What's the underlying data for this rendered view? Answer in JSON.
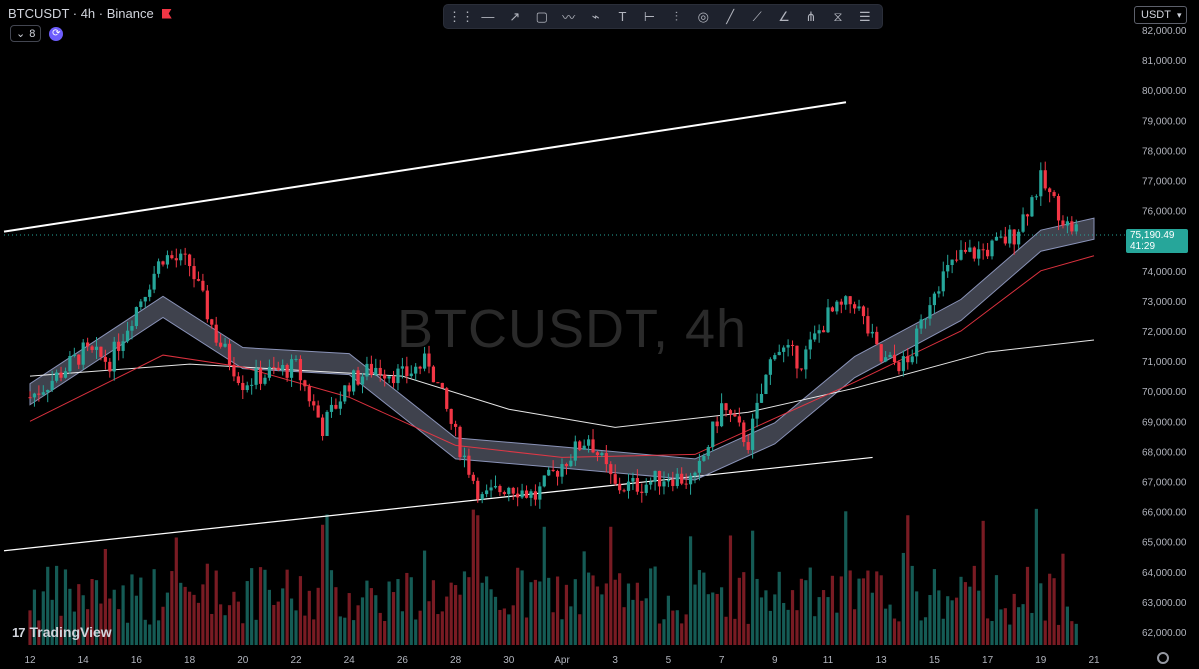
{
  "header": {
    "title": "BTCUSDT · 4h · Binance",
    "indicator_count": "8"
  },
  "watermark": "BTCUSDT, 4h",
  "currency": "USDT",
  "last_price": {
    "value": "75,190.49",
    "countdown": "41:29"
  },
  "brand": "TradingView",
  "toolbar_tools": [
    "drag-handle-icon",
    "horizontal-line-icon",
    "arrow-icon",
    "rectangle-icon",
    "brush-icon",
    "path-icon",
    "text-icon",
    "fib-icon",
    "long-position-icon",
    "circle-icon",
    "line-tool-icon",
    "ray-icon",
    "trend-angle-icon",
    "pitchfork-icon",
    "gann-icon",
    "settings-lines-icon"
  ],
  "colors": {
    "up": "#26a69a",
    "down": "#f23645",
    "background": "#000000"
  },
  "chart_data": {
    "type": "candlestick",
    "symbol": "BTCUSDT",
    "interval": "4h",
    "exchange": "Binance",
    "y_axis": {
      "ticks": [
        "82,000.00",
        "81,000.00",
        "80,000.00",
        "79,000.00",
        "78,000.00",
        "77,000.00",
        "76,000.00",
        "75,000.00",
        "74,000.00",
        "73,000.00",
        "72,000.00",
        "71,000.00",
        "70,000.00",
        "69,000.00",
        "68,000.00",
        "67,000.00",
        "66,000.00",
        "65,000.00",
        "64,000.00",
        "63,000.00",
        "62,000.00"
      ],
      "range": [
        61800,
        82400
      ]
    },
    "x_axis": {
      "ticks": [
        "12",
        "14",
        "16",
        "18",
        "20",
        "22",
        "24",
        "26",
        "28",
        "30",
        "Apr",
        "3",
        "5",
        "7",
        "9",
        "11",
        "13",
        "15",
        "17",
        "19",
        "21"
      ]
    },
    "price_key_points": [
      {
        "date": "Mar 11",
        "close": 69800
      },
      {
        "date": "Mar 12",
        "close": 70500
      },
      {
        "date": "Mar 13",
        "close": 71300
      },
      {
        "date": "Mar 14",
        "close": 71000
      },
      {
        "date": "Mar 15",
        "close": 72800
      },
      {
        "date": "Mar 16",
        "close": 74500
      },
      {
        "date": "Mar 17",
        "close": 74200
      },
      {
        "date": "Mar 18",
        "close": 71800
      },
      {
        "date": "Mar 19",
        "close": 70300
      },
      {
        "date": "Mar 20",
        "close": 70600
      },
      {
        "date": "Mar 21",
        "close": 70800
      },
      {
        "date": "Mar 22",
        "close": 68800
      },
      {
        "date": "Mar 23",
        "close": 70300
      },
      {
        "date": "Mar 24",
        "close": 70800
      },
      {
        "date": "Mar 25",
        "close": 70500
      },
      {
        "date": "Mar 26",
        "close": 71000
      },
      {
        "date": "Mar 27",
        "close": 68500
      },
      {
        "date": "Mar 28",
        "close": 66400
      },
      {
        "date": "Mar 29",
        "close": 66900
      },
      {
        "date": "Mar 30",
        "close": 66500
      },
      {
        "date": "Mar 31",
        "close": 67600
      },
      {
        "date": "Apr 1",
        "close": 68500
      },
      {
        "date": "Apr 2",
        "close": 66800
      },
      {
        "date": "Apr 3",
        "close": 66900
      },
      {
        "date": "Apr 4",
        "close": 67200
      },
      {
        "date": "Apr 5",
        "close": 67000
      },
      {
        "date": "Apr 6",
        "close": 69500
      },
      {
        "date": "Apr 7",
        "close": 68300
      },
      {
        "date": "Apr 8",
        "close": 71500
      },
      {
        "date": "Apr 9",
        "close": 71000
      },
      {
        "date": "Apr 10",
        "close": 72500
      },
      {
        "date": "Apr 11",
        "close": 73000
      },
      {
        "date": "Apr 12",
        "close": 71000
      },
      {
        "date": "Apr 13",
        "close": 70900
      },
      {
        "date": "Apr 14",
        "close": 73500
      },
      {
        "date": "Apr 15",
        "close": 74500
      },
      {
        "date": "Apr 16",
        "close": 74700
      },
      {
        "date": "Apr 17",
        "close": 75200
      },
      {
        "date": "Apr 18",
        "close": 77000
      },
      {
        "date": "Apr 19",
        "close": 75500
      },
      {
        "date": "Apr 20",
        "close": 75190.49
      }
    ],
    "trendlines": [
      {
        "name": "upper-channel",
        "from": {
          "date": "Mar 11",
          "price": 75300
        },
        "to": {
          "date": "Apr 20",
          "price": 79600
        }
      },
      {
        "name": "lower-channel",
        "from": {
          "date": "Mar 11",
          "price": 64700
        },
        "to": {
          "date": "Apr 21",
          "price": 67800
        }
      }
    ],
    "moving_averages": [
      {
        "color": "#ffffff",
        "points": [
          [
            0,
            70500
          ],
          [
            6,
            70900
          ],
          [
            10,
            70700
          ],
          [
            14,
            70500
          ],
          [
            18,
            69400
          ],
          [
            22,
            68800
          ],
          [
            27,
            69300
          ],
          [
            31,
            70100
          ],
          [
            36,
            71300
          ],
          [
            40,
            71700
          ]
        ]
      },
      {
        "color": "#f23645",
        "points": [
          [
            0,
            69000
          ],
          [
            5,
            71200
          ],
          [
            8,
            70800
          ],
          [
            12,
            69800
          ],
          [
            16,
            68200
          ],
          [
            20,
            67800
          ],
          [
            25,
            67900
          ],
          [
            27,
            68700
          ],
          [
            31,
            70300
          ],
          [
            35,
            72000
          ],
          [
            38,
            74000
          ],
          [
            40,
            74500
          ]
        ]
      }
    ],
    "volume_y_range": [
      0,
      100
    ]
  }
}
